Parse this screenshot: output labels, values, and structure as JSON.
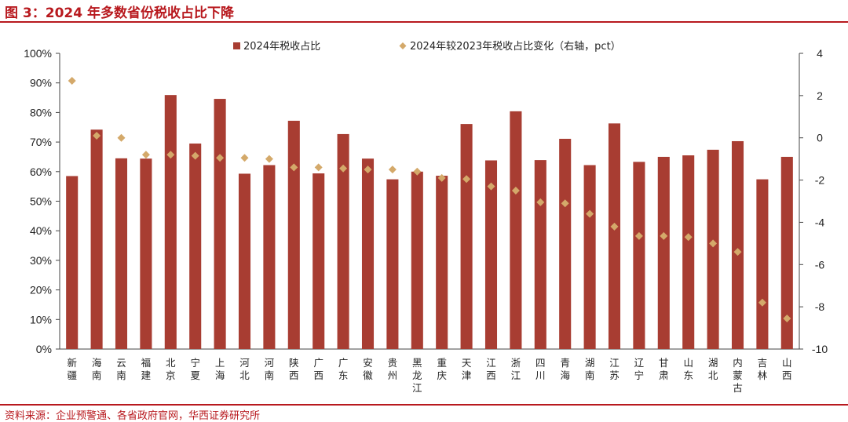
{
  "title": "图 3：2024 年多数省份税收占比下降",
  "source": "资料来源：企业预警通、各省政府官网，华西证券研究所",
  "colors": {
    "bar": "#a83d32",
    "marker": "#d4a96a",
    "accent": "#b8191e"
  },
  "chart_data": {
    "type": "bar",
    "categories": [
      "新疆",
      "海南",
      "云南",
      "福建",
      "北京",
      "宁夏",
      "上海",
      "河北",
      "河南",
      "陕西",
      "广西",
      "广东",
      "安徽",
      "贵州",
      "黑龙江",
      "重庆",
      "天津",
      "江西",
      "浙江",
      "四川",
      "青海",
      "湖南",
      "江苏",
      "辽宁",
      "甘肃",
      "山东",
      "湖北",
      "内蒙古",
      "吉林",
      "山西"
    ],
    "series": [
      {
        "name": "2024年税收占比",
        "type": "bar",
        "axis": "left",
        "unit": "%",
        "values": [
          58.5,
          74.2,
          64.5,
          64.4,
          85.9,
          69.5,
          84.6,
          59.3,
          62.2,
          77.2,
          59.4,
          72.7,
          64.4,
          57.4,
          60.0,
          58.6,
          76.1,
          63.8,
          80.4,
          63.9,
          71.1,
          62.2,
          76.3,
          63.3,
          65.0,
          65.5,
          67.4,
          70.3,
          57.4,
          65.0
        ]
      },
      {
        "name": "2024年较2023年税收占比变化（右轴，pct）",
        "type": "scatter",
        "axis": "right",
        "unit": "pct",
        "values": [
          2.7,
          0.1,
          0.0,
          -0.8,
          -0.8,
          -0.85,
          -0.95,
          -0.95,
          -1.0,
          -1.4,
          -1.4,
          -1.45,
          -1.5,
          -1.5,
          -1.6,
          -1.9,
          -1.95,
          -2.3,
          -2.5,
          -3.05,
          -3.1,
          -3.6,
          -4.2,
          -4.65,
          -4.65,
          -4.7,
          -5.0,
          -5.4,
          -7.8,
          -8.55
        ]
      }
    ],
    "left_axis": {
      "min": 0,
      "max": 100,
      "step": 10,
      "tick_labels": [
        "0%",
        "10%",
        "20%",
        "30%",
        "40%",
        "50%",
        "60%",
        "70%",
        "80%",
        "90%",
        "100%"
      ]
    },
    "right_axis": {
      "min": -10,
      "max": 4,
      "step": 2,
      "tick_labels": [
        "-10",
        "-8",
        "-6",
        "-4",
        "-2",
        "0",
        "2",
        "4"
      ]
    },
    "grid": false,
    "legend_position": "top"
  }
}
